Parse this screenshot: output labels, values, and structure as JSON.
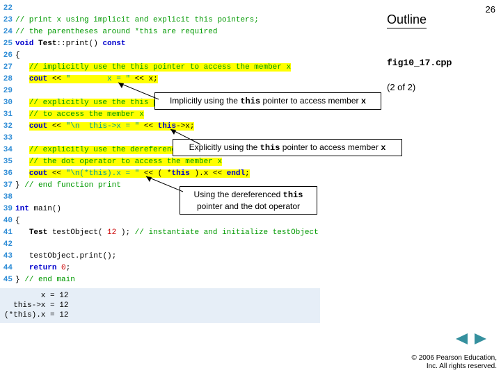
{
  "slide_number": "26",
  "outline_label": "Outline",
  "file_mono": "fig10_17.",
  "file_ext": "cpp",
  "pager": "(2 of 2)",
  "lines": [
    {
      "n": "22",
      "raw": ""
    },
    {
      "n": "23",
      "raw": "// print x using implicit and explicit this pointers;"
    },
    {
      "n": "24",
      "raw": "// the parentheses around *this are required"
    },
    {
      "n": "25",
      "raw": "void Test::print() const"
    },
    {
      "n": "26",
      "raw": "{"
    },
    {
      "n": "27",
      "raw": "   // implicitly use the this pointer to access the member x"
    },
    {
      "n": "28",
      "raw": "   cout << \"        x = \" << x;"
    },
    {
      "n": "29",
      "raw": ""
    },
    {
      "n": "30",
      "raw": "   // explicitly use the this pointer"
    },
    {
      "n": "31",
      "raw": "   // to access the member x"
    },
    {
      "n": "32",
      "raw": "   cout << \"\\n  this->x = \" << this->x;"
    },
    {
      "n": "33",
      "raw": ""
    },
    {
      "n": "34",
      "raw": "   // explicitly use the dereferenced this pointer and"
    },
    {
      "n": "35",
      "raw": "   // the dot operator to access the member x"
    },
    {
      "n": "36",
      "raw": "   cout << \"\\n(*this).x = \" << ( *this ).x << endl;"
    },
    {
      "n": "37",
      "raw": "} // end function print"
    },
    {
      "n": "38",
      "raw": ""
    },
    {
      "n": "39",
      "raw": "int main()"
    },
    {
      "n": "40",
      "raw": "{"
    },
    {
      "n": "41",
      "raw": "   Test testObject( 12 ); // instantiate and initialize testObject"
    },
    {
      "n": "42",
      "raw": ""
    },
    {
      "n": "43",
      "raw": "   testObject.print();"
    },
    {
      "n": "44",
      "raw": "   return 0;"
    },
    {
      "n": "45",
      "raw": "} // end main"
    }
  ],
  "output_text": "        x = 12\n  this->x = 12\n(*this).x = 12",
  "callouts": {
    "c1": {
      "pre": "Implicitly using the ",
      "mono": "this",
      "mid": " pointer to access member ",
      "mono2": "x"
    },
    "c2": {
      "pre": "Explicitly using the ",
      "mono": "this",
      "mid": " pointer to access member ",
      "mono2": "x"
    },
    "c3": {
      "pre": "Using the dereferenced ",
      "mono": "this",
      "mid2": "pointer and the dot operator"
    }
  },
  "copyright": "© 2006 Pearson Education,\nInc.  All rights reserved.",
  "colors": {
    "highlight": "#ffff00",
    "comment": "#009900",
    "keyword": "#0000cc",
    "string": "#009999",
    "lineno": "#2d8cd6",
    "navbtn": "#35909e",
    "output_bg": "#e6eef7"
  }
}
